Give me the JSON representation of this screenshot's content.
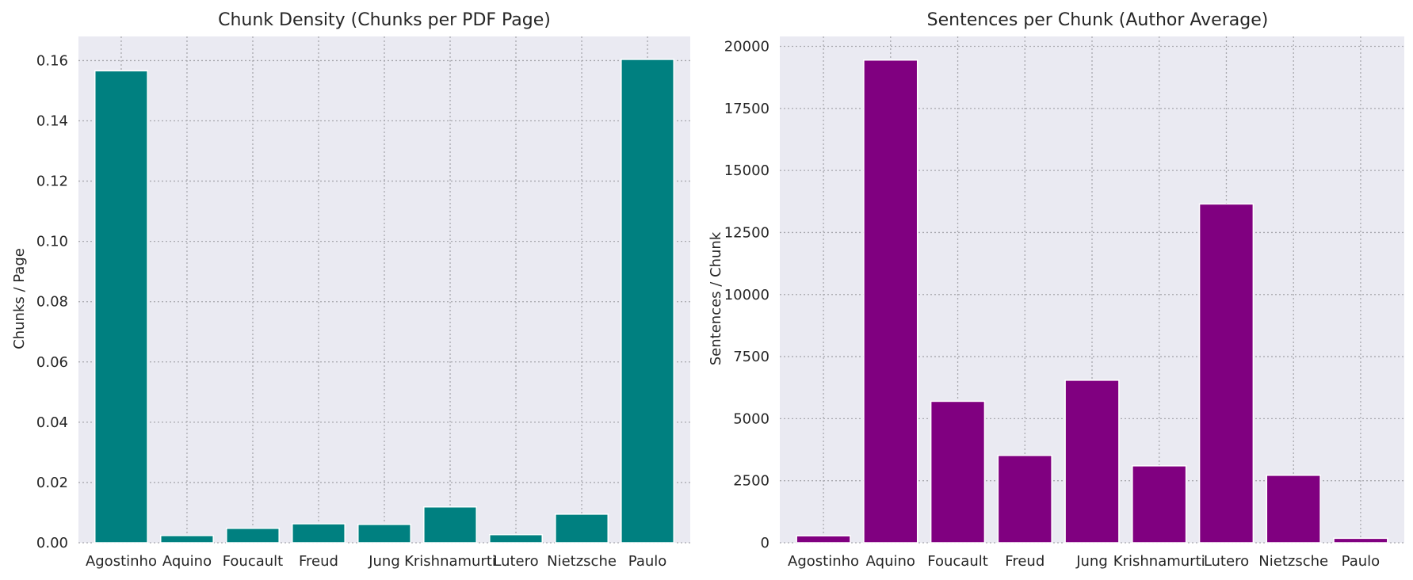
{
  "chart_data": [
    {
      "type": "bar",
      "title": "Chunk Density (Chunks per PDF Page)",
      "xlabel": "",
      "ylabel": "Chunks / Page",
      "categories": [
        "Agostinho",
        "Aquino",
        "Foucault",
        "Freud",
        "Jung",
        "Krishnamurti",
        "Lutero",
        "Nietzsche",
        "Paulo"
      ],
      "values": [
        0.1566,
        0.0024,
        0.0048,
        0.0063,
        0.0061,
        0.0119,
        0.0027,
        0.0095,
        0.1604
      ],
      "ylim": [
        0,
        0.168
      ],
      "yticks": [
        0.0,
        0.02,
        0.04,
        0.06,
        0.08,
        0.1,
        0.12,
        0.14,
        0.16
      ],
      "ytick_labels": [
        "0.00",
        "0.02",
        "0.04",
        "0.06",
        "0.08",
        "0.10",
        "0.12",
        "0.14",
        "0.16"
      ],
      "color": "#008080",
      "grid": true
    },
    {
      "type": "bar",
      "title": "Sentences per Chunk (Author Average)",
      "xlabel": "",
      "ylabel": "Sentences / Chunk",
      "categories": [
        "Agostinho",
        "Aquino",
        "Foucault",
        "Freud",
        "Jung",
        "Krishnamurti",
        "Lutero",
        "Nietzsche",
        "Paulo"
      ],
      "values": [
        280,
        19450,
        5700,
        3520,
        6550,
        3100,
        13650,
        2720,
        180
      ],
      "ylim": [
        0,
        20400
      ],
      "yticks": [
        0,
        2500,
        5000,
        7500,
        10000,
        12500,
        15000,
        17500,
        20000
      ],
      "ytick_labels": [
        "0",
        "2500",
        "5000",
        "7500",
        "10000",
        "12500",
        "15000",
        "17500",
        "20000"
      ],
      "color": "#800080",
      "grid": true
    }
  ],
  "style": {
    "plot_background": "#eaeaf2",
    "page_background": "#ffffff",
    "grid_color": "#a8a8ae",
    "text_color": "#262626"
  }
}
